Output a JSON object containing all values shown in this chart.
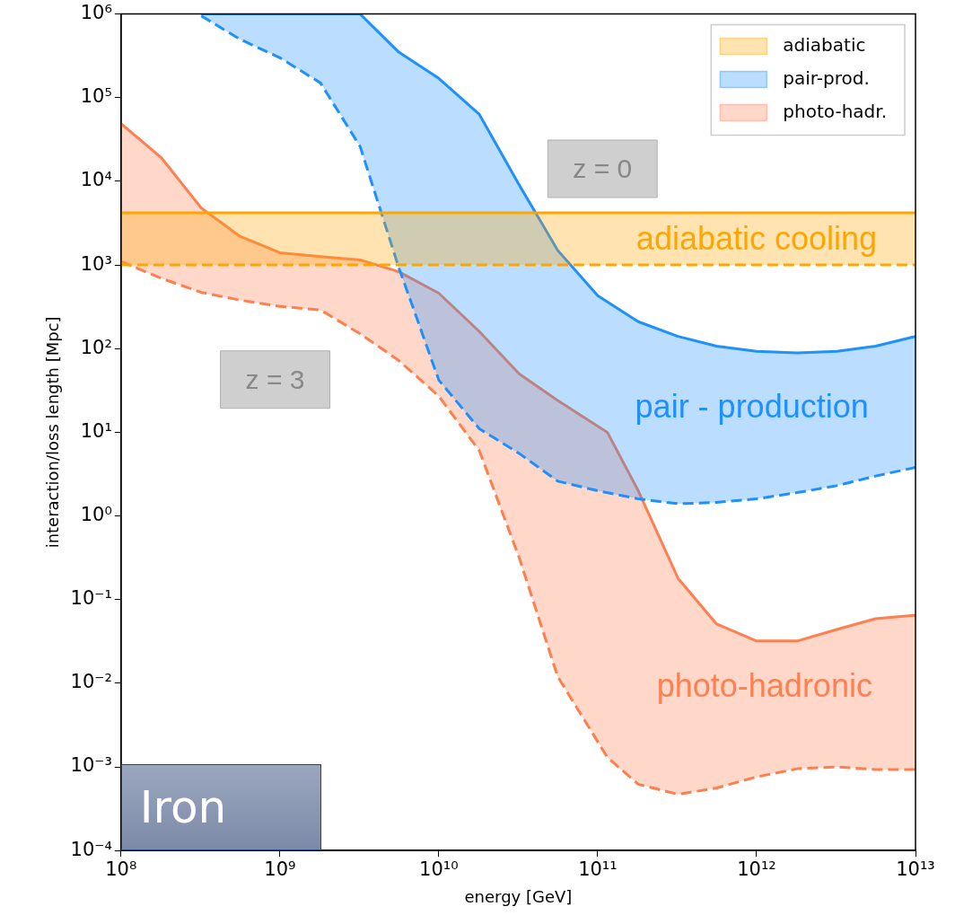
{
  "chart_data": {
    "type": "area",
    "xlabel": "energy [GeV]",
    "ylabel": "interaction/loss length [Mpc]",
    "log": "xy",
    "grid": false,
    "legend": "top right",
    "xlim": [
      100000000.0,
      10000000000000.0
    ],
    "ylim": [
      0.0001,
      1000000.0
    ],
    "xticks": [
      {
        "value": 100000000.0,
        "label": "10⁸"
      },
      {
        "value": 1000000000.0,
        "label": "10⁹"
      },
      {
        "value": 10000000000.0,
        "label": "10¹⁰"
      },
      {
        "value": 100000000000.0,
        "label": "10¹¹"
      },
      {
        "value": 1000000000000.0,
        "label": "10¹²"
      },
      {
        "value": 10000000000000.0,
        "label": "10¹³"
      }
    ],
    "yticks": [
      {
        "value": 0.0001,
        "label": "10⁻⁴"
      },
      {
        "value": 0.001,
        "label": "10⁻³"
      },
      {
        "value": 0.01,
        "label": "10⁻²"
      },
      {
        "value": 0.1,
        "label": "10⁻¹"
      },
      {
        "value": 1,
        "label": "10⁰"
      },
      {
        "value": 10,
        "label": "10¹"
      },
      {
        "value": 100,
        "label": "10²"
      },
      {
        "value": 1000,
        "label": "10³"
      },
      {
        "value": 10000.0,
        "label": "10⁴"
      },
      {
        "value": 100000.0,
        "label": "10⁵"
      },
      {
        "value": 1000000.0,
        "label": "10⁶"
      }
    ],
    "series": [
      {
        "name": "adiabatic",
        "color": "#ffa500",
        "line_style": "solid",
        "x": [
          100000000.0,
          10000000000000.0
        ],
        "values": [
          4200,
          4200
        ]
      },
      {
        "type": "line",
        "color": "#ffa500",
        "line_style": "dashed",
        "x": [
          100000000.0,
          10000000000000.0
        ],
        "values": [
          1000,
          1000
        ]
      },
      {
        "name": "pair-prod.",
        "color": "#1e90ff",
        "line_style": "solid",
        "x": [
          320000000.0,
          560000000.0,
          1000000000.0,
          1800000000.0,
          3200000000.0,
          5600000000.0,
          10000000000.0,
          18000000000.0,
          32000000000.0,
          56000000000.0,
          100000000000.0,
          180000000000.0,
          320000000000.0,
          560000000000.0,
          1000000000000.0,
          1800000000000.0,
          3200000000000.0,
          5600000000000.0,
          10000000000000.0
        ],
        "values": [
          1000000.0,
          1000000.0,
          1000000.0,
          1000000.0,
          1000000.0,
          350000.0,
          170000.0,
          63000.0,
          9100,
          1500,
          430,
          210,
          140,
          107,
          93,
          89,
          93,
          107,
          140
        ]
      },
      {
        "type": "line",
        "color": "#1e90ff",
        "line_style": "dashed",
        "x": [
          320000000.0,
          560000000.0,
          1000000000.0,
          1800000000.0,
          3200000000.0,
          5600000000.0,
          10000000000.0,
          18000000000.0,
          32000000000.0,
          56000000000.0,
          100000000000.0,
          180000000000.0,
          320000000000.0,
          560000000000.0,
          1000000000000.0,
          1800000000000.0,
          3200000000000.0,
          5600000000000.0,
          10000000000000.0
        ],
        "values": [
          950000.0,
          500000.0,
          300000.0,
          150000.0,
          26000.0,
          930,
          42,
          11,
          5.6,
          2.6,
          2.0,
          1.6,
          1.4,
          1.45,
          1.6,
          1.9,
          2.3,
          3.0,
          3.8
        ]
      },
      {
        "name": "photo-hadr.",
        "color": "#ff7f50",
        "line_style": "solid",
        "x": [
          100000000.0,
          180000000.0,
          320000000.0,
          560000000.0,
          1000000000.0,
          1800000000.0,
          3200000000.0,
          5600000000.0,
          10000000000.0,
          18000000000.0,
          32000000000.0,
          56000000000.0,
          115000000000.0,
          180000000000.0,
          320000000000.0,
          560000000000.0,
          1000000000000.0,
          1800000000000.0,
          3200000000000.0,
          5600000000000.0,
          10000000000000.0
        ],
        "values": [
          49000.0,
          19000.0,
          4800,
          2200,
          1400,
          1260,
          1150,
          830,
          460,
          160,
          50,
          24,
          10,
          2.0,
          0.18,
          0.051,
          0.032,
          0.032,
          0.044,
          0.059,
          0.065
        ]
      },
      {
        "type": "line",
        "color": "#ff7f50",
        "line_style": "dashed",
        "x": [
          100000000.0,
          180000000.0,
          320000000.0,
          560000000.0,
          1000000000.0,
          1800000000.0,
          3200000000.0,
          5600000000.0,
          10000000000.0,
          18000000000.0,
          32000000000.0,
          56000000000.0,
          115000000000.0,
          180000000000.0,
          320000000000.0,
          560000000000.0,
          1000000000000.0,
          1800000000000.0,
          3200000000000.0,
          5600000000000.0,
          10000000000000.0
        ],
        "values": [
          1100,
          690,
          470,
          380,
          320,
          290,
          150,
          72,
          27,
          6.0,
          0.32,
          0.012,
          0.0013,
          0.00062,
          0.00047,
          0.00056,
          0.00076,
          0.00095,
          0.001,
          0.00093,
          0.00093
        ]
      }
    ],
    "annotations": [
      "adiabatic cooling",
      "pair - production",
      "photo-hadronic",
      "z = 0",
      "z = 3",
      "Iron"
    ]
  }
}
